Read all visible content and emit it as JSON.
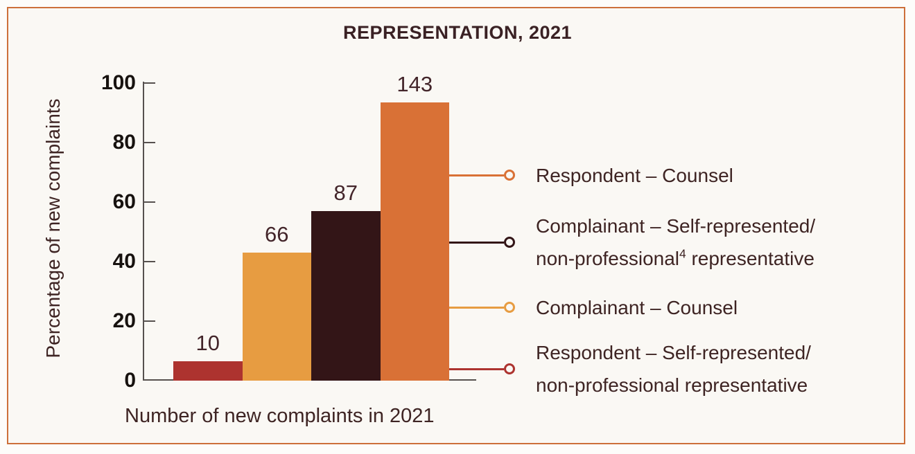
{
  "title": "REPRESENTATION, 2021",
  "chart_data": {
    "type": "bar",
    "title": "REPRESENTATION, 2021",
    "xlabel": "Number of new complaints in 2021",
    "ylabel": "Percentage of new complaints",
    "ylim": [
      0,
      100
    ],
    "yticks": [
      0,
      20,
      40,
      60,
      80,
      100
    ],
    "grid": false,
    "legend_position": "right-callouts",
    "bars": [
      {
        "category": "Respondent – Self-represented/non-professional representative",
        "count": 10,
        "percent": 6.5,
        "color": "#ad332f"
      },
      {
        "category": "Complainant – Counsel",
        "count": 66,
        "percent": 43.1,
        "color": "#e79c41"
      },
      {
        "category": "Complainant – Self-represented/non-professional⁴ representative",
        "count": 87,
        "percent": 56.9,
        "color": "#331517"
      },
      {
        "category": "Respondent – Counsel",
        "count": 143,
        "percent": 93.5,
        "color": "#d97136"
      }
    ]
  },
  "legend": {
    "items": [
      {
        "bar": 3,
        "lines": [
          [
            {
              "t": "Respondent – Counsel"
            }
          ]
        ]
      },
      {
        "bar": 2,
        "lines": [
          [
            {
              "t": "Complainant – Self-represented/"
            }
          ],
          [
            {
              "t": "non-professional"
            },
            {
              "t": "4",
              "sup": true
            },
            {
              "t": " representative"
            }
          ]
        ]
      },
      {
        "bar": 1,
        "lines": [
          [
            {
              "t": "Complainant – Counsel"
            }
          ]
        ]
      },
      {
        "bar": 0,
        "lines": [
          [
            {
              "t": "Respondent – Self-represented/"
            }
          ],
          [
            {
              "t": "non-professional representative"
            }
          ]
        ]
      }
    ]
  },
  "colors": {
    "frame_border": "#cd6f3a",
    "background": "#faf8f4",
    "text_brown": "#3e2423",
    "tick_text": "#17120f",
    "axis_line": "#56504e"
  }
}
